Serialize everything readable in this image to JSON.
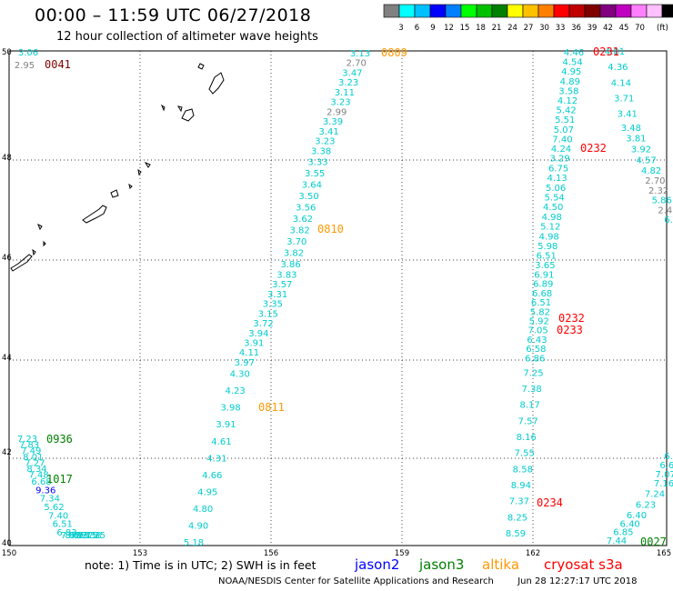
{
  "header": {
    "title": "00:00 – 11:59 UTC 06/27/2018",
    "subtitle": "12 hour collection of altimeter wave heights"
  },
  "legend": {
    "unit": "(ft)",
    "colors": [
      "#808080",
      "#00ffff",
      "#00c0ff",
      "#0000ff",
      "#0080ff",
      "#00ff00",
      "#00c000",
      "#008000",
      "#ffff00",
      "#ffc000",
      "#ff8000",
      "#ff0000",
      "#c00000",
      "#800000",
      "#800080",
      "#c000c0",
      "#ff80ff",
      "#ffc0ff",
      "#000000"
    ],
    "labels": [
      "3",
      "6",
      "9",
      "12",
      "15",
      "18",
      "21",
      "24",
      "27",
      "30",
      "33",
      "36",
      "39",
      "42",
      "45",
      "70"
    ]
  },
  "map": {
    "lon_labels": [
      "150",
      "153",
      "156",
      "159",
      "162",
      "165"
    ],
    "lat_labels": [
      "50",
      "48",
      "46",
      "44",
      "42",
      "40"
    ],
    "pass_labels": [
      {
        "text": "0041",
        "color": "#800000"
      },
      {
        "text": "0809",
        "color": "#ff9900"
      },
      {
        "text": "0231",
        "color": "#ff0000"
      },
      {
        "text": "0232",
        "color": "#ff0000"
      },
      {
        "text": "0810",
        "color": "#ff9900"
      },
      {
        "text": "0232",
        "color": "#ff0000"
      },
      {
        "text": "0233",
        "color": "#ff0000"
      },
      {
        "text": "0811",
        "color": "#ff9900"
      },
      {
        "text": "0936",
        "color": "#008000"
      },
      {
        "text": "1017",
        "color": "#008000"
      },
      {
        "text": "0234",
        "color": "#ff0000"
      },
      {
        "text": "0027",
        "color": "#008000"
      }
    ],
    "tracks": [
      {
        "name": "track-left-top",
        "values": [
          "3.06",
          "2.95"
        ]
      },
      {
        "name": "track-0809-0811",
        "values": [
          "3.13",
          "2.70",
          "3.47",
          "3.23",
          "3.11",
          "3.23",
          "2.99",
          "3.39",
          "3.41",
          "3.23",
          "3.38",
          "3.33",
          "3.55",
          "3.64",
          "3.50",
          "3.56",
          "3.62",
          "3.82",
          "3.70",
          "3.82",
          "3.86",
          "3.83",
          "3.57",
          "3.31",
          "3.35",
          "3.15",
          "3.72",
          "3.94",
          "3.91",
          "4.11",
          "3.97",
          "4.30",
          "4.23",
          "3.98",
          "3.91",
          "4.61",
          "4.31",
          "4.66",
          "4.95",
          "4.80",
          "4.90",
          "5.18"
        ]
      },
      {
        "name": "track-0231-0234",
        "values": [
          "4.46",
          "4.54",
          "4.95",
          "4.89",
          "3.58",
          "4.12",
          "5.42",
          "5.51",
          "5.07",
          "7.40",
          "4.24",
          "3.29",
          "6.75",
          "4.13",
          "5.06",
          "5.54",
          "4.50",
          "4.98",
          "5.12",
          "4.98",
          "5.98",
          "6.51",
          "3.65",
          "6.91",
          "6.89",
          "6.68",
          "6.51",
          "5.82",
          "5.92",
          "7.05",
          "6.43",
          "6.58",
          "6.86",
          "7.25",
          "7.38",
          "8.17",
          "7.57",
          "8.16",
          "7.55",
          "8.58",
          "8.94",
          "7.37",
          "8.25",
          "8.59"
        ]
      },
      {
        "name": "track-0231-right",
        "values": [
          "4.81",
          "4.36",
          "4.14",
          "3.71",
          "3.41",
          "3.48",
          "3.81",
          "3.92",
          "4.57",
          "4.82",
          "2.70",
          "2.32",
          "5.86",
          "2.4",
          "6."
        ]
      },
      {
        "name": "track-0936",
        "values": [
          "7.23",
          "7.83",
          "7.49",
          "8.01",
          "7.27",
          "8.34",
          "7.48",
          "6.68",
          "9.36",
          "7.34",
          "5.62",
          "7.40",
          "6.51",
          "6.83",
          "7.40",
          "8.06",
          "5.93",
          "6.37",
          "7.15",
          "7.38",
          "7.35"
        ]
      },
      {
        "name": "track-0027",
        "values": [
          "6.",
          "6.6",
          "7.07",
          "7.16",
          "7.24",
          "6.23",
          "6.40",
          "6.40",
          "6.85",
          "7.44"
        ]
      }
    ]
  },
  "footer": {
    "note": "note: 1) Time is in UTC; 2) SWH is in feet",
    "sats": [
      {
        "text": "jason2",
        "color": "#0000ff"
      },
      {
        "text": "jason3",
        "color": "#008000"
      },
      {
        "text": "altika",
        "color": "#ff9900"
      },
      {
        "text": "cryosat s3a",
        "color": "#ff0000"
      }
    ],
    "credit": "NOAA/NESDIS Center for Satellite Applications and Research",
    "timestamp": "Jun 28 12:27:17 UTC 2018"
  }
}
